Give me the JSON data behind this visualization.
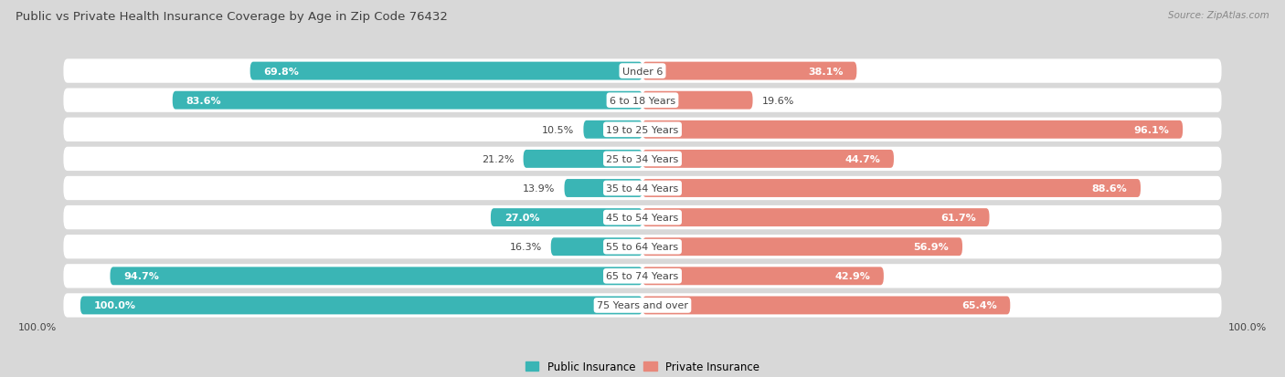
{
  "title": "Public vs Private Health Insurance Coverage by Age in Zip Code 76432",
  "source": "Source: ZipAtlas.com",
  "categories": [
    "Under 6",
    "6 to 18 Years",
    "19 to 25 Years",
    "25 to 34 Years",
    "35 to 44 Years",
    "45 to 54 Years",
    "55 to 64 Years",
    "65 to 74 Years",
    "75 Years and over"
  ],
  "public_values": [
    69.8,
    83.6,
    10.5,
    21.2,
    13.9,
    27.0,
    16.3,
    94.7,
    100.0
  ],
  "private_values": [
    38.1,
    19.6,
    96.1,
    44.7,
    88.6,
    61.7,
    56.9,
    42.9,
    65.4
  ],
  "public_color": "#3ab5b5",
  "private_color": "#e8877a",
  "bg_color": "#d8d8d8",
  "row_bg_even": "#f5f5f5",
  "row_bg_odd": "#e8e8e8",
  "title_color": "#404040",
  "source_color": "#888888",
  "label_dark": "#444444",
  "label_white": "#ffffff",
  "max_value": 100.0,
  "figsize": [
    14.06,
    4.14
  ],
  "dpi": 100,
  "pub_label_threshold": 25,
  "priv_label_threshold": 25
}
